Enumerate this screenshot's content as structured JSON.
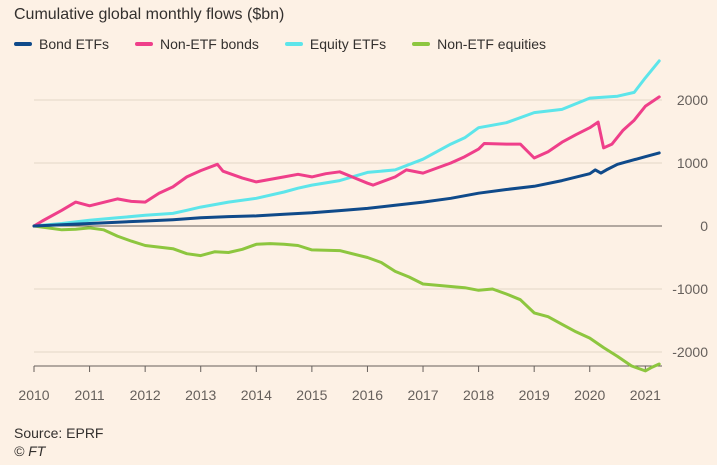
{
  "chart_data": {
    "type": "line",
    "title": "Cumulative global monthly flows ($bn)",
    "xlabel": "",
    "ylabel": "",
    "x_ticks": [
      "2010",
      "2011",
      "2012",
      "2013",
      "2014",
      "2015",
      "2016",
      "2017",
      "2018",
      "2019",
      "2020",
      "2021"
    ],
    "y_ticks": [
      2000,
      1000,
      0,
      -1000,
      -2000
    ],
    "y_tick_labels": [
      "2000",
      "1000",
      "0",
      "-1000",
      "-2000"
    ],
    "xlim": [
      2010,
      2021.3
    ],
    "ylim": [
      -2300,
      2650
    ],
    "grid": "horizontal",
    "legend_position": "top-left",
    "series": [
      {
        "name": "Bond ETFs",
        "color": "#0f4a8a",
        "points": [
          [
            2010.0,
            0
          ],
          [
            2010.5,
            20
          ],
          [
            2011.0,
            40
          ],
          [
            2011.5,
            60
          ],
          [
            2012.0,
            80
          ],
          [
            2012.5,
            100
          ],
          [
            2013.0,
            130
          ],
          [
            2013.5,
            150
          ],
          [
            2014.0,
            160
          ],
          [
            2014.5,
            185
          ],
          [
            2015.0,
            210
          ],
          [
            2015.5,
            245
          ],
          [
            2016.0,
            280
          ],
          [
            2016.5,
            330
          ],
          [
            2017.0,
            380
          ],
          [
            2017.5,
            440
          ],
          [
            2018.0,
            520
          ],
          [
            2018.5,
            580
          ],
          [
            2019.0,
            630
          ],
          [
            2019.5,
            720
          ],
          [
            2020.0,
            830
          ],
          [
            2020.1,
            890
          ],
          [
            2020.2,
            840
          ],
          [
            2020.3,
            890
          ],
          [
            2020.5,
            980
          ],
          [
            2021.0,
            1100
          ],
          [
            2021.25,
            1160
          ]
        ]
      },
      {
        "name": "Non-ETF bonds",
        "color": "#ef3f8a",
        "points": [
          [
            2010.0,
            0
          ],
          [
            2010.15,
            80
          ],
          [
            2010.5,
            250
          ],
          [
            2010.75,
            380
          ],
          [
            2011.0,
            320
          ],
          [
            2011.5,
            430
          ],
          [
            2011.75,
            390
          ],
          [
            2012.0,
            380
          ],
          [
            2012.25,
            520
          ],
          [
            2012.5,
            620
          ],
          [
            2012.75,
            780
          ],
          [
            2013.0,
            880
          ],
          [
            2013.3,
            980
          ],
          [
            2013.4,
            870
          ],
          [
            2013.75,
            760
          ],
          [
            2014.0,
            700
          ],
          [
            2014.5,
            780
          ],
          [
            2014.75,
            820
          ],
          [
            2015.0,
            780
          ],
          [
            2015.25,
            830
          ],
          [
            2015.5,
            860
          ],
          [
            2015.75,
            770
          ],
          [
            2016.0,
            680
          ],
          [
            2016.1,
            650
          ],
          [
            2016.5,
            780
          ],
          [
            2016.7,
            890
          ],
          [
            2017.0,
            840
          ],
          [
            2017.5,
            1000
          ],
          [
            2017.75,
            1100
          ],
          [
            2018.0,
            1220
          ],
          [
            2018.1,
            1310
          ],
          [
            2018.5,
            1300
          ],
          [
            2018.75,
            1300
          ],
          [
            2019.0,
            1080
          ],
          [
            2019.25,
            1180
          ],
          [
            2019.5,
            1330
          ],
          [
            2019.75,
            1450
          ],
          [
            2020.0,
            1560
          ],
          [
            2020.15,
            1650
          ],
          [
            2020.25,
            1240
          ],
          [
            2020.4,
            1300
          ],
          [
            2020.6,
            1520
          ],
          [
            2020.8,
            1680
          ],
          [
            2021.0,
            1900
          ],
          [
            2021.25,
            2050
          ]
        ]
      },
      {
        "name": "Equity ETFs",
        "color": "#5de5ea",
        "points": [
          [
            2010.0,
            0
          ],
          [
            2010.5,
            40
          ],
          [
            2011.0,
            90
          ],
          [
            2011.5,
            130
          ],
          [
            2012.0,
            170
          ],
          [
            2012.5,
            200
          ],
          [
            2012.75,
            250
          ],
          [
            2013.0,
            300
          ],
          [
            2013.5,
            380
          ],
          [
            2014.0,
            440
          ],
          [
            2014.5,
            540
          ],
          [
            2014.75,
            600
          ],
          [
            2015.0,
            650
          ],
          [
            2015.5,
            720
          ],
          [
            2016.0,
            850
          ],
          [
            2016.5,
            890
          ],
          [
            2017.0,
            1060
          ],
          [
            2017.5,
            1300
          ],
          [
            2017.75,
            1400
          ],
          [
            2018.0,
            1560
          ],
          [
            2018.5,
            1640
          ],
          [
            2019.0,
            1800
          ],
          [
            2019.5,
            1850
          ],
          [
            2020.0,
            2030
          ],
          [
            2020.5,
            2060
          ],
          [
            2020.8,
            2120
          ],
          [
            2021.0,
            2350
          ],
          [
            2021.25,
            2620
          ]
        ]
      },
      {
        "name": "Non-ETF equities",
        "color": "#8dc63f",
        "points": [
          [
            2010.0,
            0
          ],
          [
            2010.25,
            -30
          ],
          [
            2010.5,
            -60
          ],
          [
            2010.75,
            -50
          ],
          [
            2011.0,
            -30
          ],
          [
            2011.25,
            -60
          ],
          [
            2011.5,
            -160
          ],
          [
            2011.75,
            -240
          ],
          [
            2012.0,
            -310
          ],
          [
            2012.5,
            -360
          ],
          [
            2012.75,
            -440
          ],
          [
            2013.0,
            -470
          ],
          [
            2013.25,
            -410
          ],
          [
            2013.5,
            -420
          ],
          [
            2013.75,
            -370
          ],
          [
            2014.0,
            -290
          ],
          [
            2014.25,
            -280
          ],
          [
            2014.5,
            -290
          ],
          [
            2014.75,
            -310
          ],
          [
            2015.0,
            -380
          ],
          [
            2015.5,
            -390
          ],
          [
            2016.0,
            -500
          ],
          [
            2016.25,
            -580
          ],
          [
            2016.5,
            -720
          ],
          [
            2016.75,
            -810
          ],
          [
            2017.0,
            -920
          ],
          [
            2017.5,
            -960
          ],
          [
            2017.75,
            -980
          ],
          [
            2018.0,
            -1020
          ],
          [
            2018.25,
            -1000
          ],
          [
            2018.5,
            -1080
          ],
          [
            2018.75,
            -1170
          ],
          [
            2019.0,
            -1380
          ],
          [
            2019.25,
            -1440
          ],
          [
            2019.5,
            -1560
          ],
          [
            2019.75,
            -1680
          ],
          [
            2020.0,
            -1780
          ],
          [
            2020.25,
            -1930
          ],
          [
            2020.5,
            -2070
          ],
          [
            2020.75,
            -2220
          ],
          [
            2021.0,
            -2300
          ],
          [
            2021.1,
            -2250
          ],
          [
            2021.25,
            -2190
          ]
        ]
      }
    ]
  },
  "source": "Source: EPRF",
  "copyright": "© FT"
}
